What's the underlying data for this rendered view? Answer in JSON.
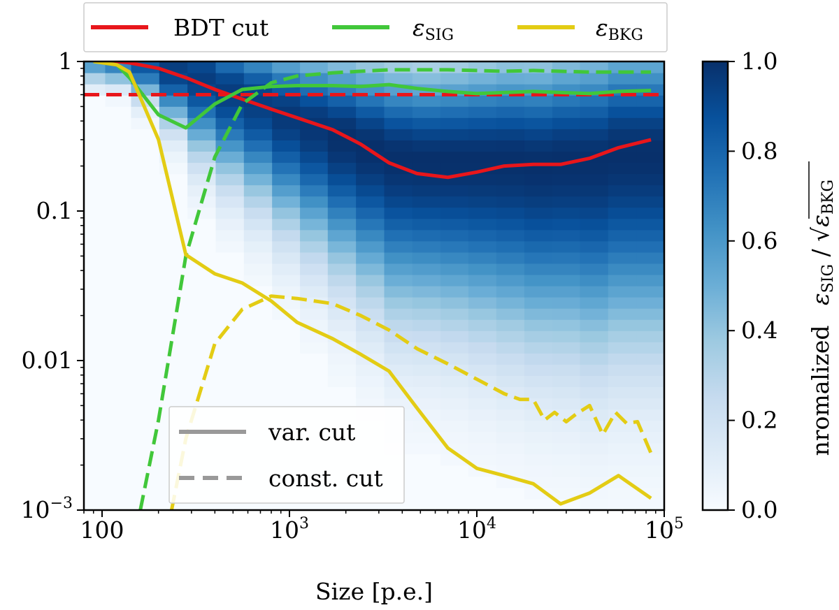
{
  "chart_data": {
    "type": "line",
    "title": "",
    "xlabel": "Size [p.e.]",
    "ylabel": "",
    "xscale": "log",
    "yscale": "log",
    "xlim": [
      80,
      100000
    ],
    "ylim": [
      0.001,
      1
    ],
    "x_ticks": [
      {
        "value": 100,
        "label": "100"
      },
      {
        "value": 1000,
        "label": "10",
        "exp": "3"
      },
      {
        "value": 10000,
        "label": "10",
        "exp": "4"
      },
      {
        "value": 100000,
        "label": "10",
        "exp": "5"
      }
    ],
    "y_ticks": [
      {
        "value": 1,
        "label": "1"
      },
      {
        "value": 0.1,
        "label": "0.1"
      },
      {
        "value": 0.01,
        "label": "0.01"
      },
      {
        "value": 0.001,
        "label": "10",
        "exp": "−3"
      }
    ],
    "series": [
      {
        "name": "BDT cut",
        "style": "solid",
        "color": "#e8161b",
        "x": [
          90,
          120,
          140,
          200,
          280,
          400,
          560,
          800,
          1100,
          1700,
          2400,
          3400,
          4800,
          7000,
          10000,
          14000,
          20000,
          28000,
          40000,
          57000,
          85000
        ],
        "y": [
          1.0,
          1.0,
          0.98,
          0.9,
          0.78,
          0.65,
          0.56,
          0.48,
          0.42,
          0.35,
          0.28,
          0.21,
          0.178,
          0.168,
          0.182,
          0.2,
          0.205,
          0.205,
          0.225,
          0.265,
          0.3
        ]
      },
      {
        "name": "BDT cut (const.)",
        "style": "dashed",
        "color": "#e8161b",
        "x": [
          80,
          100000
        ],
        "y": [
          0.6,
          0.6
        ]
      },
      {
        "name": "εSIG",
        "style": "solid",
        "color": "#41c73a",
        "x": [
          90,
          120,
          140,
          200,
          280,
          400,
          560,
          800,
          1100,
          1700,
          2400,
          3400,
          4800,
          7000,
          10000,
          14000,
          20000,
          28000,
          40000,
          57000,
          85000
        ],
        "y": [
          1.0,
          0.95,
          0.78,
          0.44,
          0.36,
          0.52,
          0.65,
          0.68,
          0.69,
          0.69,
          0.68,
          0.7,
          0.66,
          0.63,
          0.61,
          0.62,
          0.63,
          0.62,
          0.61,
          0.63,
          0.64
        ]
      },
      {
        "name": "εSIG (const.)",
        "style": "dashed",
        "color": "#41c73a",
        "x": [
          160,
          200,
          280,
          400,
          560,
          800,
          1100,
          1700,
          2400,
          3400,
          4800,
          7000,
          10000,
          14000,
          20000,
          28000,
          40000,
          57000,
          85000
        ],
        "y": [
          0.001,
          0.004,
          0.05,
          0.23,
          0.52,
          0.72,
          0.8,
          0.84,
          0.86,
          0.88,
          0.88,
          0.88,
          0.87,
          0.86,
          0.87,
          0.86,
          0.85,
          0.85,
          0.85
        ]
      },
      {
        "name": "εBKG",
        "style": "solid",
        "color": "#e3cc14",
        "x": [
          90,
          120,
          140,
          200,
          280,
          400,
          560,
          800,
          1100,
          1700,
          2400,
          3400,
          4800,
          7000,
          10000,
          14000,
          20000,
          28000,
          40000,
          57000,
          85000
        ],
        "y": [
          1.0,
          0.95,
          0.85,
          0.3,
          0.051,
          0.038,
          0.033,
          0.025,
          0.018,
          0.014,
          0.011,
          0.0085,
          0.0048,
          0.0026,
          0.0019,
          0.0017,
          0.0015,
          0.0011,
          0.0013,
          0.0017,
          0.0012
        ]
      },
      {
        "name": "εBKG (const.)",
        "style": "dashed",
        "color": "#e3cc14",
        "x": [
          235,
          280,
          400,
          560,
          800,
          1100,
          1700,
          2400,
          3400,
          4800,
          7000,
          10000,
          14000,
          17000,
          20000,
          23000,
          26000,
          30000,
          34000,
          40000,
          47000,
          55000,
          63000,
          72000,
          85000
        ],
        "y": [
          0.001,
          0.003,
          0.013,
          0.022,
          0.027,
          0.026,
          0.024,
          0.02,
          0.016,
          0.012,
          0.0095,
          0.0075,
          0.006,
          0.0055,
          0.0055,
          0.004,
          0.0045,
          0.0039,
          0.0044,
          0.005,
          0.0032,
          0.0045,
          0.0038,
          0.0039,
          0.0024
        ]
      }
    ],
    "heatmap": {
      "description": "normalized εSIG/√εBKG",
      "x_bin_centers": [
        90,
        120,
        170,
        240,
        340,
        480,
        680,
        960,
        1350,
        1900,
        2700,
        3800,
        5400,
        7600,
        10700,
        15100,
        21300,
        30000,
        42000,
        60000,
        84000
      ],
      "peak_center_y": [
        1.0,
        0.98,
        0.95,
        0.9,
        0.8,
        0.65,
        0.55,
        0.45,
        0.38,
        0.32,
        0.27,
        0.23,
        0.22,
        0.22,
        0.22,
        0.22,
        0.21,
        0.22,
        0.22,
        0.25,
        0.25
      ],
      "peak_width_decades": [
        0.1,
        0.1,
        0.15,
        0.25,
        0.35,
        0.4,
        0.45,
        0.5,
        0.55,
        0.6,
        0.65,
        0.7,
        0.7,
        0.72,
        0.75,
        0.78,
        0.8,
        0.82,
        0.85,
        0.85,
        0.85
      ],
      "peak_value": [
        0.6,
        0.7,
        0.85,
        0.95,
        0.95,
        0.95,
        0.95,
        0.97,
        0.98,
        1.0,
        1.0,
        1.0,
        1.0,
        1.0,
        1.0,
        1.0,
        1.0,
        1.0,
        1.0,
        1.0,
        1.0
      ]
    },
    "colorbar": {
      "label": "nromalized",
      "label_math": "εSIG / √εBKG",
      "range": [
        0.0,
        1.0
      ],
      "ticks": [
        "0.0",
        "0.2",
        "0.4",
        "0.6",
        "0.8",
        "1.0"
      ],
      "colormap": "Blues"
    },
    "legend_top": {
      "placement": "top",
      "entries": [
        {
          "label": "BDT cut",
          "color": "#e8161b"
        },
        {
          "label": "ε",
          "sub": "SIG",
          "color": "#41c73a"
        },
        {
          "label": "ε",
          "sub": "BKG",
          "color": "#e3cc14"
        }
      ]
    },
    "legend_bottom": {
      "placement": "bottom-left",
      "entries": [
        {
          "label": "var. cut",
          "style": "solid",
          "color": "#999999"
        },
        {
          "label": "const. cut",
          "style": "dashed",
          "color": "#999999"
        }
      ]
    }
  }
}
